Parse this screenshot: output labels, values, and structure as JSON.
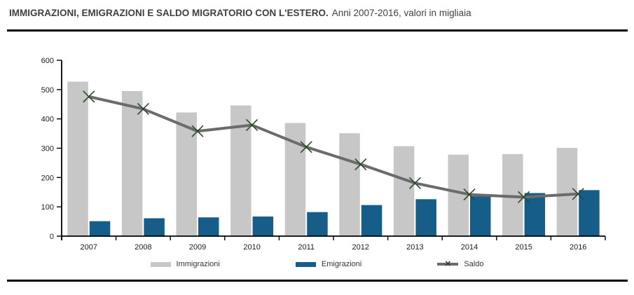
{
  "header": {
    "title_bold": "IMMIGRAZIONI, EMIGRAZIONI E SALDO MIGRATORIO CON L'ESTERO.",
    "title_regular": "Anni 2007-2016, valori in migliaia"
  },
  "colors": {
    "immigrazioni_bar": "#c7c7c7",
    "emigrazioni_bar": "#165e89",
    "saldo_line": "#6b6b6b",
    "saldo_marker": "#2c4a2c",
    "axis": "#000000",
    "tick_label": "#1a1a1a",
    "title": "#3f3f3f",
    "rule": "#000000"
  },
  "chart_data": {
    "type": "bar+line",
    "title": "IMMIGRAZIONI, EMIGRAZIONI E SALDO MIGRATORIO CON L'ESTERO.",
    "subtitle": "Anni 2007-2016, valori in migliaia",
    "categories": [
      "2007",
      "2008",
      "2009",
      "2010",
      "2011",
      "2012",
      "2013",
      "2014",
      "2015",
      "2016"
    ],
    "series": [
      {
        "name": "Immigrazioni",
        "type": "bar",
        "color_key": "immigrazioni_bar",
        "values": [
          527,
          495,
          422,
          446,
          386,
          351,
          307,
          278,
          280,
          301
        ]
      },
      {
        "name": "Emigrazioni",
        "type": "bar",
        "color_key": "emigrazioni_bar",
        "values": [
          51,
          61,
          64,
          67,
          82,
          106,
          126,
          136,
          147,
          157
        ]
      },
      {
        "name": "Saldo",
        "type": "line",
        "color_key": "saldo_line",
        "marker": "x",
        "marker_color_key": "saldo_marker",
        "values": [
          476,
          434,
          358,
          379,
          304,
          245,
          181,
          142,
          133,
          144
        ]
      }
    ],
    "xlabel": "",
    "ylabel": "",
    "ylim": [
      0,
      600
    ],
    "ytick_step": 100,
    "grid": false,
    "legend_position": "bottom"
  }
}
